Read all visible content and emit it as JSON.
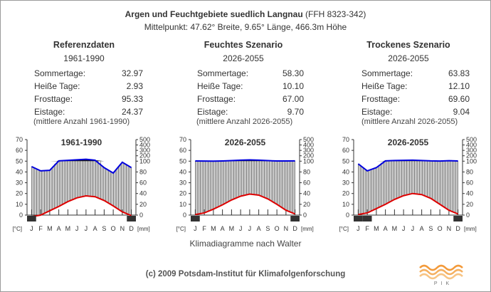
{
  "header": {
    "title_bold": "Argen und Feuchtgebiete suedlich Langnau",
    "title_code": "(FFH 8323-342)",
    "subtitle": "Mittelpunkt: 47.62° Breite, 9.65° Länge, 466.3m Höhe"
  },
  "panels": [
    {
      "title": "Referenzdaten",
      "period": "1961-1990",
      "stats": [
        {
          "label": "Sommertage:",
          "value": "32.97"
        },
        {
          "label": "Heiße Tage:",
          "value": "2.93"
        },
        {
          "label": "Frosttage:",
          "value": "95.33"
        },
        {
          "label": "Eistage:",
          "value": "24.37"
        }
      ],
      "note": "(mittlere Anzahl 1961-1990)"
    },
    {
      "title": "Feuchtes Szenario",
      "period": "2026-2055",
      "stats": [
        {
          "label": "Sommertage:",
          "value": "58.30"
        },
        {
          "label": "Heiße Tage:",
          "value": "10.10"
        },
        {
          "label": "Frosttage:",
          "value": "67.00"
        },
        {
          "label": "Eistage:",
          "value": "9.70"
        }
      ],
      "note": "(mittlere Anzahl 2026-2055)"
    },
    {
      "title": "Trockenes Szenario",
      "period": "2026-2055",
      "stats": [
        {
          "label": "Sommertage:",
          "value": "63.83"
        },
        {
          "label": "Heiße Tage:",
          "value": "12.10"
        },
        {
          "label": "Frosttage:",
          "value": "69.60"
        },
        {
          "label": "Eistage:",
          "value": "9.04"
        }
      ],
      "note": "(mittlere Anzahl 2026-2055)"
    }
  ],
  "chart_data": [
    {
      "type": "line",
      "title": "1961-1990",
      "categories": [
        "J",
        "F",
        "M",
        "A",
        "M",
        "J",
        "J",
        "A",
        "S",
        "O",
        "N",
        "D"
      ],
      "xlabel_left": "[°C]",
      "xlabel_right": "[mm]",
      "y_left": {
        "ticks": [
          0,
          10,
          20,
          30,
          40,
          50,
          60,
          70
        ],
        "lim": [
          0,
          70
        ]
      },
      "y_right": {
        "ticks": [
          0,
          20,
          40,
          60,
          80,
          100,
          200,
          300,
          400,
          500
        ],
        "lim": [
          0,
          500
        ]
      },
      "series": [
        {
          "name": "Temperatur",
          "color": "#dd0000",
          "values": [
            -1.5,
            0.0,
            4.0,
            8.0,
            12.5,
            16.0,
            17.8,
            17.0,
            13.5,
            8.5,
            3.0,
            -0.5
          ]
        },
        {
          "name": "Niederschlag",
          "color": "#0000dd",
          "values": [
            90,
            82,
            83,
            105,
            115,
            125,
            135,
            118,
            88,
            78,
            98,
            88
          ]
        }
      ],
      "frost_months": [
        1,
        12
      ]
    },
    {
      "type": "line",
      "title": "2026-2055",
      "categories": [
        "J",
        "F",
        "M",
        "A",
        "M",
        "J",
        "J",
        "A",
        "S",
        "O",
        "N",
        "D"
      ],
      "xlabel_left": "[°C]",
      "xlabel_right": "[mm]",
      "y_left": {
        "ticks": [
          0,
          10,
          20,
          30,
          40,
          50,
          60,
          70
        ],
        "lim": [
          0,
          70
        ]
      },
      "y_right": {
        "ticks": [
          0,
          20,
          40,
          60,
          80,
          100,
          200,
          300,
          400,
          500
        ],
        "lim": [
          0,
          500
        ]
      },
      "series": [
        {
          "name": "Temperatur",
          "color": "#dd0000",
          "values": [
            0.5,
            2.0,
            5.5,
            9.5,
            14.0,
            17.5,
            19.5,
            18.5,
            15.0,
            10.0,
            4.5,
            1.0
          ]
        },
        {
          "name": "Niederschlag",
          "color": "#0000dd",
          "values": [
            104,
            102,
            101,
            104,
            110,
            118,
            124,
            118,
            110,
            103,
            104,
            105
          ]
        }
      ],
      "frost_months": [
        1,
        12
      ]
    },
    {
      "type": "line",
      "title": "2026-2055",
      "categories": [
        "J",
        "F",
        "M",
        "A",
        "M",
        "J",
        "J",
        "A",
        "S",
        "O",
        "N",
        "D"
      ],
      "xlabel_left": "[°C]",
      "xlabel_right": "[mm]",
      "y_left": {
        "ticks": [
          0,
          10,
          20,
          30,
          40,
          50,
          60,
          70
        ],
        "lim": [
          0,
          70
        ]
      },
      "y_right": {
        "ticks": [
          0,
          20,
          40,
          60,
          80,
          100,
          200,
          300,
          400,
          500
        ],
        "lim": [
          0,
          500
        ]
      },
      "series": [
        {
          "name": "Temperatur",
          "color": "#dd0000",
          "values": [
            0.5,
            2.0,
            6.0,
            10.0,
            14.5,
            18.0,
            20.0,
            19.0,
            15.5,
            10.0,
            4.5,
            1.0
          ]
        },
        {
          "name": "Niederschlag",
          "color": "#0000dd",
          "values": [
            95,
            82,
            88,
            105,
            112,
            115,
            118,
            112,
            105,
            102,
            108,
            104
          ]
        }
      ],
      "frost_months": [
        1,
        2,
        12
      ]
    }
  ],
  "footer": {
    "caption": "Klimadiagramme nach Walter",
    "copyright": "(c) 2009 Potsdam-Institut für Klimafolgenforschung",
    "logo_text": "PIK"
  }
}
